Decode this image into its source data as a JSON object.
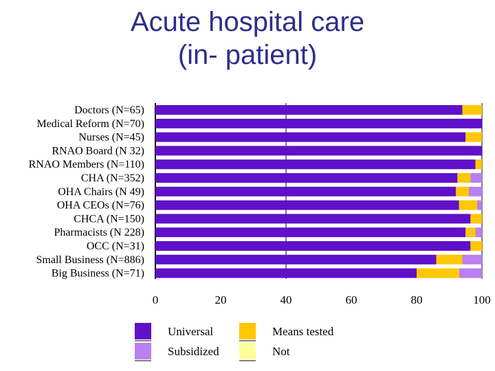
{
  "title": {
    "line1": "Acute hospital care",
    "line2": "(in- patient)"
  },
  "chart_data": {
    "type": "bar",
    "orientation": "horizontal",
    "stacked": true,
    "categories": [
      "Doctors (N=65)",
      "Medical Reform (N=70)",
      "Nurses (N=45)",
      "RNAO Board (N 32)",
      "RNAO Members (N=110)",
      "CHA (N=352)",
      "OHA Chairs (N 49)",
      "OHA CEOs (N=76)",
      "CHCA (N=150)",
      "Pharmacists (N 228)",
      "OCC (N=31)",
      "Small Business (N=886)",
      "Big Business (N=71)"
    ],
    "series": [
      {
        "name": "Universal",
        "color": "#6010c8",
        "values": [
          94,
          100,
          95,
          100,
          98,
          92.5,
          92,
          93,
          96.5,
          95,
          96.5,
          86,
          80
        ]
      },
      {
        "name": "Means tested",
        "color": "#ffc800",
        "values": [
          6,
          0,
          5,
          0,
          2,
          4,
          4,
          5.5,
          3.5,
          3,
          3.5,
          8,
          13
        ]
      },
      {
        "name": "Subsidized",
        "color": "#b880f0",
        "values": [
          0,
          0,
          0,
          0,
          0,
          3.5,
          4,
          1.5,
          0,
          2,
          0,
          6,
          7
        ]
      },
      {
        "name": "Not",
        "color": "#ffff99",
        "values": [
          0,
          0,
          0,
          0,
          0,
          0,
          0,
          0,
          0,
          0,
          0,
          0,
          0
        ]
      }
    ],
    "xticks": [
      "0",
      "20",
      "40",
      "60",
      "80",
      "100"
    ],
    "xlim": [
      0,
      100
    ],
    "grid": "vertical lines at 40 and 100",
    "legend_position": "bottom"
  }
}
